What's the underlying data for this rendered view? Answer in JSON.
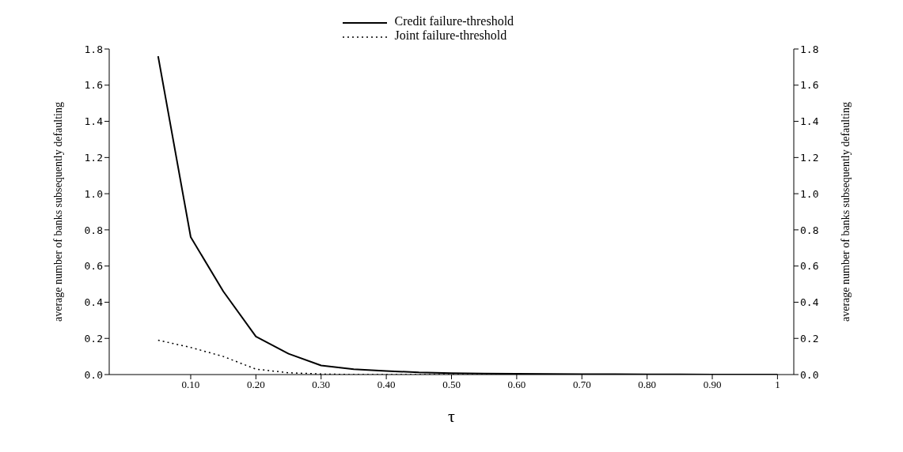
{
  "chart_data": {
    "type": "line",
    "xlabel": "τ",
    "ylabel": "average number of banks subsequently defaulting",
    "y2label": "average number of banks subsequently defaulting",
    "x": [
      0.05,
      0.1,
      0.15,
      0.2,
      0.25,
      0.3,
      0.35,
      0.4,
      0.45,
      0.5,
      0.55,
      0.6,
      0.65,
      0.7,
      0.75,
      0.8,
      0.85,
      0.9,
      0.95,
      1
    ],
    "series": [
      {
        "name": "Credit failure-threshold",
        "color": "#000000",
        "line_style": "solid",
        "values": [
          1.76,
          0.76,
          0.46,
          0.21,
          0.115,
          0.05,
          0.03,
          0.02,
          0.012,
          0.008,
          0.005,
          0.004,
          0.003,
          0.002,
          0.002,
          0.001,
          0.001,
          0,
          0,
          0
        ]
      },
      {
        "name": "Joint failure-threshold",
        "color": "#000000",
        "line_style": "dotted",
        "values": [
          0.19,
          0.15,
          0.1,
          0.03,
          0.01,
          0.003,
          0,
          0,
          0,
          0,
          0,
          0,
          0,
          0,
          0,
          0,
          0,
          0,
          0,
          0
        ]
      }
    ],
    "xlim": [
      -0.025,
      1.025
    ],
    "xticks": [
      {
        "value": 0.1,
        "label": "0.10"
      },
      {
        "value": 0.2,
        "label": "0.20"
      },
      {
        "value": 0.3,
        "label": "0.30"
      },
      {
        "value": 0.4,
        "label": "0.40"
      },
      {
        "value": 0.5,
        "label": "0.50"
      },
      {
        "value": 0.6,
        "label": "0.60"
      },
      {
        "value": 0.7,
        "label": "0.70"
      },
      {
        "value": 0.8,
        "label": "0.80"
      },
      {
        "value": 0.9,
        "label": "0.90"
      },
      1
    ],
    "ylim": [
      0,
      1.8
    ],
    "yticks": [
      {
        "value": 0,
        "label": "0.0"
      },
      0.2,
      0.4,
      0.6,
      0.8,
      {
        "value": 1,
        "label": "1.0"
      },
      1.2,
      1.4,
      1.6,
      1.8
    ],
    "y2lim": [
      0,
      1.8
    ],
    "y2ticks": [
      {
        "value": 0,
        "label": "0.0"
      },
      0.2,
      0.4,
      0.6,
      0.8,
      {
        "value": 1,
        "label": "1.0"
      },
      1.2,
      1.4,
      1.6,
      1.8
    ],
    "legend": "top",
    "marker": "none"
  }
}
